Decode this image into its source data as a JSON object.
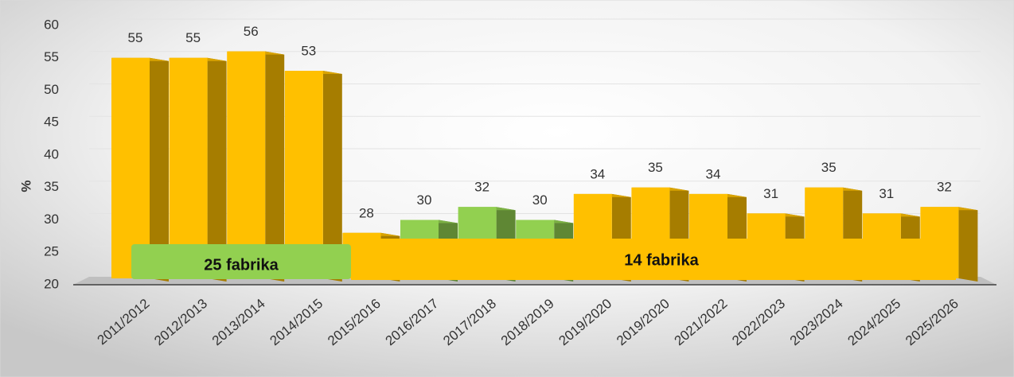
{
  "chart_data": {
    "type": "bar3d",
    "y_label": "%",
    "categories": [
      "2011/2012",
      "2012/2013",
      "2013/2014",
      "2014/2015",
      "2015/2016",
      "2016/2017",
      "2017/2018",
      "2018/2019",
      "2019/2020",
      "2019/2020",
      "2021/2022",
      "2022/2023",
      "2023/2024",
      "2024/2025",
      "2025/2026"
    ],
    "values": [
      55,
      55,
      56,
      53,
      28,
      30,
      32,
      30,
      34,
      35,
      34,
      31,
      35,
      31,
      32
    ],
    "colors": [
      "#ffc000",
      "#ffc000",
      "#ffc000",
      "#ffc000",
      "#ffc000",
      "#92d050",
      "#92d050",
      "#92d050",
      "#ffc000",
      "#ffc000",
      "#ffc000",
      "#ffc000",
      "#ffc000",
      "#ffc000",
      "#ffc000"
    ],
    "ylim": [
      20,
      60
    ],
    "yticks": [
      20,
      25,
      30,
      35,
      40,
      45,
      50,
      55,
      60
    ],
    "grid": true,
    "annotations": [
      "25 fabrika",
      "14 fabrika"
    ]
  }
}
